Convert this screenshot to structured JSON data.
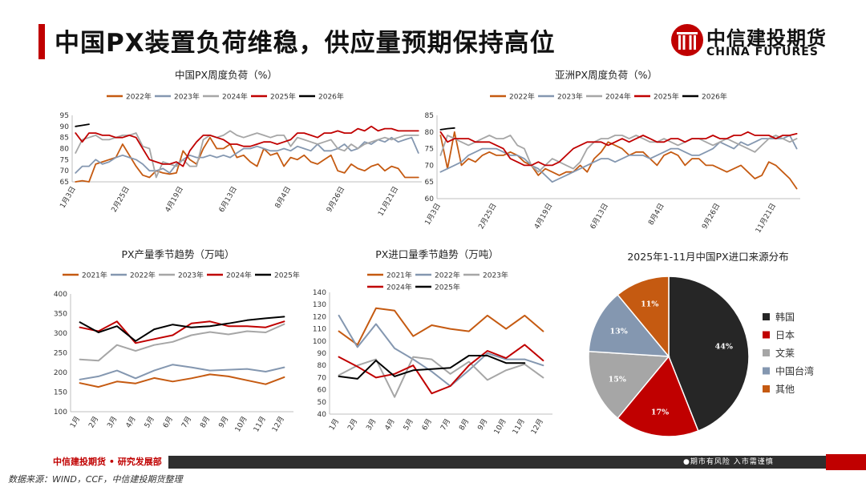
{
  "page": {
    "title": "中国PX装置负荷维稳，供应量预期保持高位",
    "logo_cn": "中信建投期货",
    "logo_en": "CHINA FUTURES",
    "footer_left": "中信建投期货 • 研究发展部",
    "footer_right": "●期市有风险  入市需谨慎",
    "source": "数据来源：WIND，CCF，中信建投期货整理"
  },
  "colors": {
    "accent": "#c00000",
    "y2021": "#c55a11",
    "y2022": "#8497b0",
    "y2023": "#a6a6a6",
    "y2024": "#c00000",
    "y2025": "#000000"
  },
  "chart_data": [
    {
      "id": "china-px-load",
      "type": "line",
      "title": "中国PX周度负荷（%）",
      "ylim": [
        65,
        95
      ],
      "yticks": [
        65,
        70,
        75,
        80,
        85,
        90,
        95
      ],
      "xticks": [
        "1月3日",
        "2月25日",
        "4月19日",
        "6月13日",
        "8月4日",
        "9月26日",
        "11月21日"
      ],
      "xtick_pos": [
        1,
        9,
        17,
        25,
        33,
        41,
        49
      ],
      "n_points": 52,
      "series": [
        {
          "name": "2022年",
          "color": "#c55a11",
          "values": [
            65,
            65.5,
            65,
            73,
            74,
            75,
            76,
            82,
            77,
            72,
            68,
            67,
            70,
            69,
            68.5,
            69,
            79,
            75,
            73,
            80,
            85,
            80,
            80,
            82,
            76,
            77,
            74,
            72,
            80,
            77,
            78,
            72,
            76,
            75,
            77,
            74,
            73,
            75,
            77,
            70,
            69,
            73,
            71,
            70,
            72,
            73,
            70,
            72,
            71,
            67,
            67,
            67
          ]
        },
        {
          "name": "2023年",
          "color": "#8497b0",
          "values": [
            69,
            72,
            72,
            75,
            73,
            74,
            76,
            77,
            76,
            75,
            73,
            70,
            70,
            71,
            69,
            73,
            75,
            77,
            76,
            76,
            77,
            76,
            77,
            76,
            78,
            80,
            80,
            81,
            80,
            79,
            79,
            80,
            79,
            81,
            80,
            79,
            82,
            79,
            79,
            80,
            82,
            79,
            80,
            83,
            82,
            84,
            83,
            85,
            83,
            84,
            85,
            78
          ]
        },
        {
          "name": "2024年",
          "color": "#a6a6a6",
          "values": [
            78,
            84,
            85,
            86,
            84,
            84,
            85,
            86,
            86,
            87,
            81,
            80,
            67,
            74,
            73,
            72,
            75,
            72,
            72,
            84,
            86,
            85,
            86,
            88,
            86,
            85,
            86,
            87,
            86,
            85,
            86,
            86,
            81,
            85,
            84,
            83,
            82,
            83,
            84,
            80,
            79,
            82,
            80,
            82,
            83,
            84,
            85,
            84,
            85,
            86,
            86,
            86
          ]
        },
        {
          "name": "2025年",
          "color": "#c00000",
          "values": [
            87,
            83,
            87,
            87,
            86,
            86,
            85,
            85,
            86,
            85,
            80,
            75,
            74,
            73,
            73,
            74,
            72,
            79,
            83,
            86,
            86,
            85,
            84,
            82,
            82,
            81,
            81,
            82,
            83,
            83,
            82,
            83,
            84,
            87,
            87,
            86,
            85,
            87,
            87,
            88,
            87,
            87,
            89,
            88,
            90,
            88,
            89,
            89,
            88,
            88,
            88,
            88
          ]
        },
        {
          "name": "2026年",
          "color": "#000000",
          "values": [
            90,
            90.5,
            91
          ]
        }
      ]
    },
    {
      "id": "asia-px-load",
      "type": "line",
      "title": "亚洲PX周度负荷（%）",
      "ylim": [
        60,
        85
      ],
      "yticks": [
        60,
        65,
        70,
        75,
        80,
        85
      ],
      "xticks": [
        "1月3日",
        "2月25日",
        "4月19日",
        "6月13日",
        "8月4日",
        "9月26日",
        "11月21日"
      ],
      "xtick_pos": [
        1,
        9,
        17,
        25,
        33,
        41,
        49
      ],
      "n_points": 52,
      "series": [
        {
          "name": "2022年",
          "color": "#c55a11",
          "values": [
            79,
            69,
            80,
            70,
            72,
            71,
            73,
            74,
            73,
            73,
            74,
            73,
            71,
            70,
            67,
            69,
            68,
            67,
            68,
            68,
            70,
            68,
            72,
            74,
            77,
            76,
            75,
            73,
            74,
            74,
            72,
            70,
            73,
            74,
            73,
            70,
            72,
            72,
            70,
            70,
            69,
            68,
            69,
            70,
            68,
            66,
            67,
            71,
            70,
            68,
            66,
            63
          ]
        },
        {
          "name": "2023年",
          "color": "#8497b0",
          "values": [
            68,
            69,
            70,
            71,
            73,
            74,
            75,
            75,
            75,
            74,
            73,
            73,
            72,
            70,
            69,
            67,
            65,
            66,
            67,
            68,
            69,
            70,
            71,
            72,
            72,
            71,
            72,
            73,
            73,
            73,
            72,
            73,
            74,
            75,
            75,
            74,
            73,
            73,
            74,
            75,
            77,
            76,
            75,
            77,
            76,
            77,
            78,
            78,
            78,
            78,
            79,
            75
          ]
        },
        {
          "name": "2024年",
          "color": "#a6a6a6",
          "values": [
            73,
            79,
            78,
            77,
            76,
            77,
            78,
            79,
            78,
            78,
            79,
            76,
            75,
            70,
            68,
            70,
            72,
            71,
            70,
            69,
            71,
            75,
            77,
            78,
            78,
            79,
            79,
            78,
            79,
            78,
            77,
            77,
            78,
            77,
            76,
            77,
            78,
            78,
            77,
            76,
            77,
            78,
            77,
            76,
            75,
            74,
            76,
            78,
            79,
            78,
            77,
            78
          ]
        },
        {
          "name": "2025年",
          "color": "#c00000",
          "values": [
            80,
            77,
            78,
            78,
            78,
            77,
            77,
            77,
            76,
            75,
            72,
            71,
            70,
            70,
            71,
            70,
            70,
            71,
            73,
            75,
            76,
            77,
            77,
            77,
            76,
            77,
            78,
            77,
            78,
            79,
            78,
            77,
            77,
            78,
            78,
            77,
            78,
            78,
            78,
            79,
            78,
            78,
            79,
            79,
            80,
            79,
            79,
            79,
            78,
            79,
            79,
            79.5
          ]
        },
        {
          "name": "2026年",
          "color": "#000000",
          "values": [
            80.7,
            81,
            81.2
          ]
        }
      ]
    },
    {
      "id": "px-output",
      "type": "line",
      "title": "PX产量季节趋势（万吨）",
      "ylim": [
        100,
        400
      ],
      "yticks": [
        100,
        150,
        200,
        250,
        300,
        350,
        400
      ],
      "categories": [
        "1月",
        "2月",
        "3月",
        "4月",
        "5月",
        "6月",
        "7月",
        "8月",
        "9月",
        "10月",
        "11月",
        "12月"
      ],
      "series": [
        {
          "name": "2021年",
          "color": "#c55a11",
          "values": [
            173,
            163,
            177,
            172,
            186,
            177,
            185,
            195,
            190,
            180,
            170,
            188
          ]
        },
        {
          "name": "2022年",
          "color": "#8497b0",
          "values": [
            182,
            190,
            205,
            185,
            205,
            220,
            213,
            205,
            207,
            209,
            202,
            213
          ]
        },
        {
          "name": "2023年",
          "color": "#a6a6a6",
          "values": [
            233,
            230,
            270,
            255,
            270,
            278,
            295,
            303,
            297,
            305,
            302,
            323
          ]
        },
        {
          "name": "2024年",
          "color": "#c00000",
          "values": [
            315,
            305,
            330,
            275,
            285,
            295,
            325,
            330,
            318,
            318,
            315,
            330
          ]
        },
        {
          "name": "2025年",
          "color": "#000000",
          "values": [
            328,
            302,
            318,
            280,
            310,
            322,
            315,
            318,
            325,
            333,
            338,
            342
          ]
        }
      ]
    },
    {
      "id": "px-import",
      "type": "line",
      "title": "PX进口量季节趋势（万吨）",
      "ylim": [
        40,
        140
      ],
      "yticks": [
        40,
        50,
        60,
        70,
        80,
        90,
        100,
        110,
        120,
        130,
        140
      ],
      "categories": [
        "1月",
        "2月",
        "3月",
        "4月",
        "5月",
        "6月",
        "7月",
        "8月",
        "9月",
        "10月",
        "11月",
        "12月"
      ],
      "series": [
        {
          "name": "2021年",
          "color": "#c55a11",
          "values": [
            108,
            97,
            127,
            125,
            104,
            113,
            110,
            108,
            121,
            110,
            121,
            108
          ]
        },
        {
          "name": "2022年",
          "color": "#8497b0",
          "values": [
            121,
            95,
            114,
            94,
            85,
            75,
            63,
            76,
            90,
            85,
            85,
            80
          ]
        },
        {
          "name": "2023年",
          "color": "#a6a6a6",
          "values": [
            72,
            80,
            85,
            54,
            87,
            85,
            73,
            83,
            68,
            76,
            81,
            70
          ]
        },
        {
          "name": "2024年",
          "color": "#c00000",
          "values": [
            87,
            79,
            70,
            73,
            80,
            57,
            63,
            80,
            92,
            86,
            97,
            84
          ]
        },
        {
          "name": "2025年",
          "color": "#000000",
          "values": [
            71,
            69,
            84,
            71,
            76,
            77,
            78,
            88,
            88,
            82,
            82,
            null
          ]
        }
      ]
    },
    {
      "id": "px-import-source",
      "type": "pie",
      "title": "2025年1-11月中国PX进口来源分布",
      "labels": [
        "韩国",
        "日本",
        "文莱",
        "中国台湾",
        "其他"
      ],
      "values": [
        44,
        17,
        15,
        13,
        11
      ],
      "colors": [
        "#262626",
        "#c00000",
        "#a6a6a6",
        "#8497b0",
        "#c55a11"
      ]
    }
  ]
}
